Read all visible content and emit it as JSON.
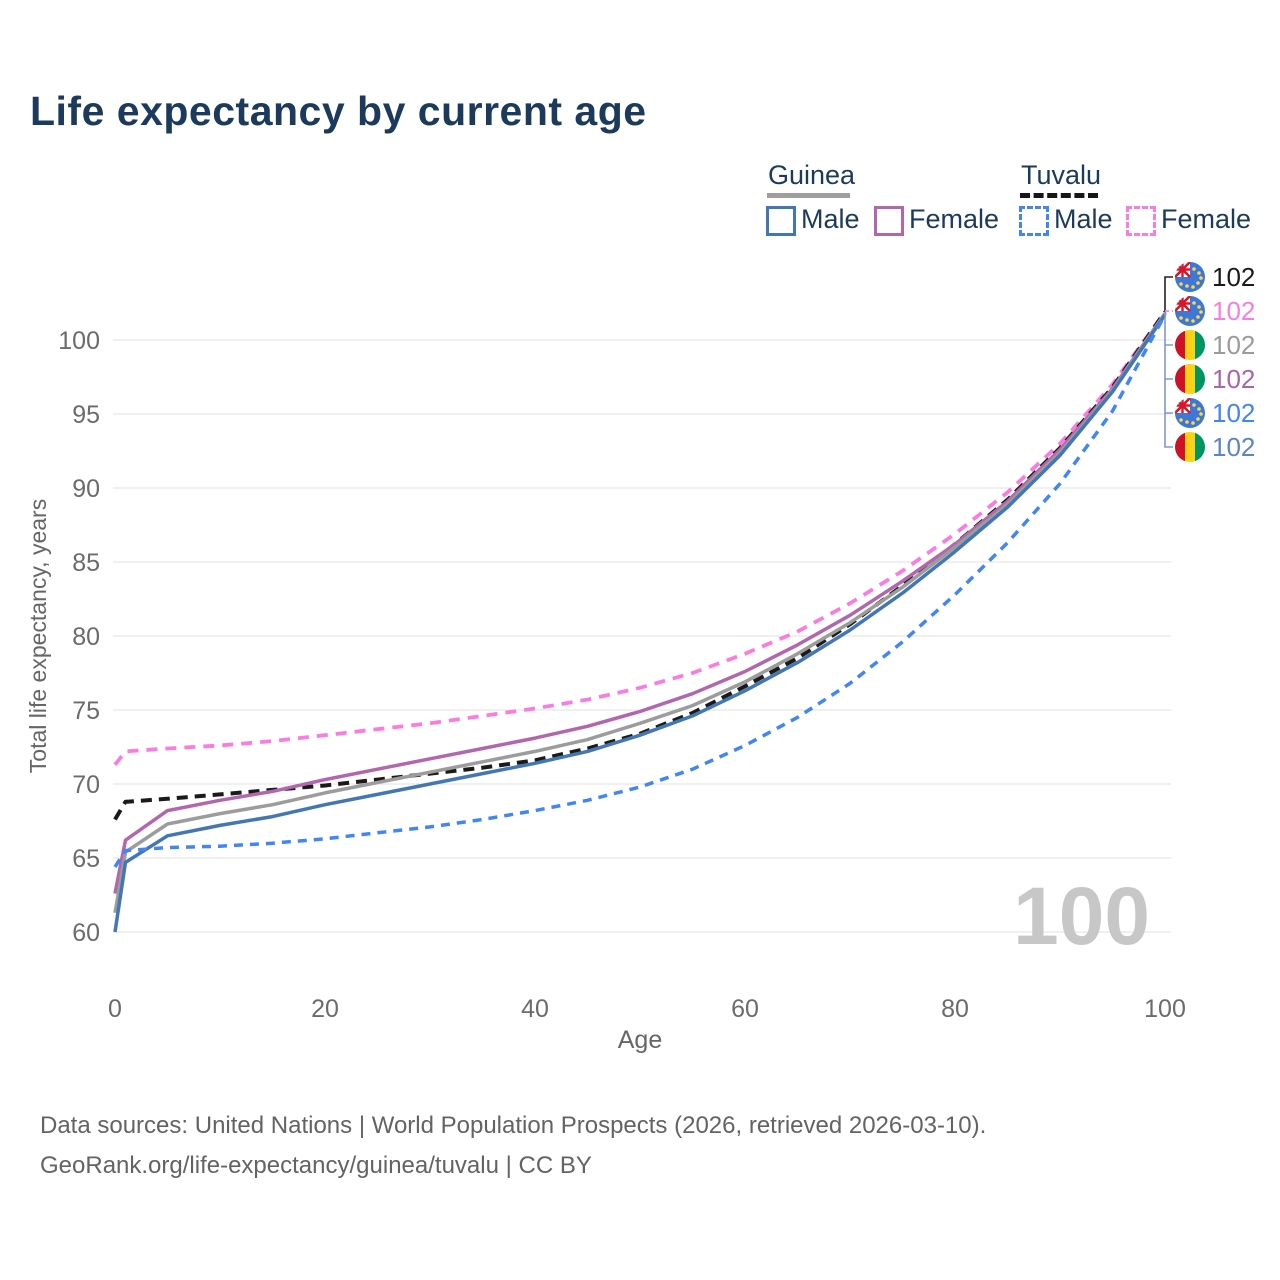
{
  "title": "Life expectancy by current age",
  "watermark": "100",
  "legend": {
    "groups": [
      {
        "name": "Guinea",
        "line_style": "solid",
        "items": [
          {
            "label": "Male",
            "color": "#4377b4"
          },
          {
            "label": "Female",
            "color": "#b266ae"
          }
        ]
      },
      {
        "name": "Tuvalu",
        "line_style": "dashed",
        "items": [
          {
            "label": "Male",
            "color": "#4285f4"
          },
          {
            "label": "Female",
            "color": "#fb7ce1"
          }
        ]
      }
    ]
  },
  "end_labels": [
    {
      "value": "102",
      "flag": "tuvalu",
      "color": "#1a1a1a"
    },
    {
      "value": "102",
      "flag": "tuvalu",
      "color": "#fb7ce1"
    },
    {
      "value": "102",
      "flag": "guinea",
      "color": "#9b9b9b"
    },
    {
      "value": "102",
      "flag": "guinea",
      "color": "#a965a9"
    },
    {
      "value": "102",
      "flag": "tuvalu",
      "color": "#4285f4"
    },
    {
      "value": "102",
      "flag": "guinea",
      "color": "#5b84c9"
    }
  ],
  "footer": {
    "line1": "Data sources: United Nations | World Population Prospects (2026, retrieved 2026-03-10).",
    "line2": "GeoRank.org/life-expectancy/guinea/tuvalu | CC BY"
  },
  "chart_data": {
    "type": "line",
    "title": "Life expectancy by current age",
    "xlabel": "Age",
    "ylabel": "Total life expectancy, years",
    "xlim": [
      0,
      100
    ],
    "ylim": [
      60,
      102.5
    ],
    "x_ticks": [
      0,
      20,
      40,
      60,
      80,
      100
    ],
    "y_ticks": [
      60,
      65,
      70,
      75,
      80,
      85,
      90,
      95,
      100
    ],
    "grid": "horizontal",
    "legend_position": "top-right",
    "x": [
      0,
      1,
      5,
      10,
      15,
      20,
      25,
      30,
      35,
      40,
      45,
      50,
      55,
      60,
      65,
      70,
      75,
      80,
      85,
      90,
      95,
      100
    ],
    "series": [
      {
        "id": "tuvalu-female",
        "name": "Tuvalu Female",
        "country": "Tuvalu",
        "sex": "Female",
        "color": "#fb7ce1",
        "dash": "11 8",
        "width": 3.8,
        "values": [
          71.3,
          72.2,
          72.4,
          72.6,
          72.9,
          73.3,
          73.7,
          74.1,
          74.6,
          75.1,
          75.7,
          76.5,
          77.5,
          78.8,
          80.3,
          82.2,
          84.4,
          86.9,
          89.7,
          93.0,
          97.0,
          101.9
        ]
      },
      {
        "id": "tuvalu-both",
        "name": "Tuvalu Both sexes",
        "country": "Tuvalu",
        "sex": "Both",
        "color": "#1a1a1a",
        "dash": "11 7",
        "width": 4,
        "values": [
          67.6,
          68.8,
          69.0,
          69.3,
          69.6,
          69.9,
          70.3,
          70.7,
          71.1,
          71.6,
          72.4,
          73.4,
          74.8,
          76.6,
          78.5,
          80.8,
          83.4,
          86.2,
          89.2,
          92.7,
          96.8,
          101.9
        ]
      },
      {
        "id": "guinea-female",
        "name": "Guinea Female",
        "country": "Guinea",
        "sex": "Female",
        "color": "#b266ae",
        "dash": null,
        "width": 3.5,
        "values": [
          62.6,
          66.2,
          68.2,
          68.9,
          69.5,
          70.3,
          71.0,
          71.7,
          72.4,
          73.1,
          73.9,
          74.9,
          76.1,
          77.6,
          79.4,
          81.4,
          83.7,
          86.2,
          89.1,
          92.6,
          96.7,
          101.8
        ]
      },
      {
        "id": "guinea-both",
        "name": "Guinea Both sexes",
        "country": "Guinea",
        "sex": "Both",
        "color": "#9c9c9c",
        "dash": null,
        "width": 3.5,
        "values": [
          61.3,
          65.4,
          67.3,
          68.0,
          68.6,
          69.4,
          70.1,
          70.8,
          71.5,
          72.2,
          73.0,
          74.1,
          75.3,
          76.9,
          78.8,
          80.9,
          83.3,
          86.0,
          88.9,
          92.4,
          96.6,
          101.8
        ]
      },
      {
        "id": "guinea-male",
        "name": "Guinea Male",
        "country": "Guinea",
        "sex": "Male",
        "color": "#4377b4",
        "dash": null,
        "width": 3.5,
        "values": [
          60.0,
          64.7,
          66.5,
          67.2,
          67.8,
          68.6,
          69.3,
          70.0,
          70.7,
          71.4,
          72.2,
          73.3,
          74.6,
          76.3,
          78.2,
          80.4,
          82.9,
          85.7,
          88.7,
          92.2,
          96.5,
          101.7
        ]
      },
      {
        "id": "tuvalu-male",
        "name": "Tuvalu Male",
        "country": "Tuvalu",
        "sex": "Male",
        "color": "#4285f4",
        "dash": "9 7",
        "width": 3.5,
        "values": [
          64.4,
          65.5,
          65.7,
          65.8,
          66.0,
          66.3,
          66.7,
          67.1,
          67.6,
          68.2,
          68.9,
          69.8,
          71.0,
          72.6,
          74.5,
          76.8,
          79.6,
          82.8,
          86.3,
          90.3,
          95.2,
          101.7
        ]
      }
    ]
  }
}
